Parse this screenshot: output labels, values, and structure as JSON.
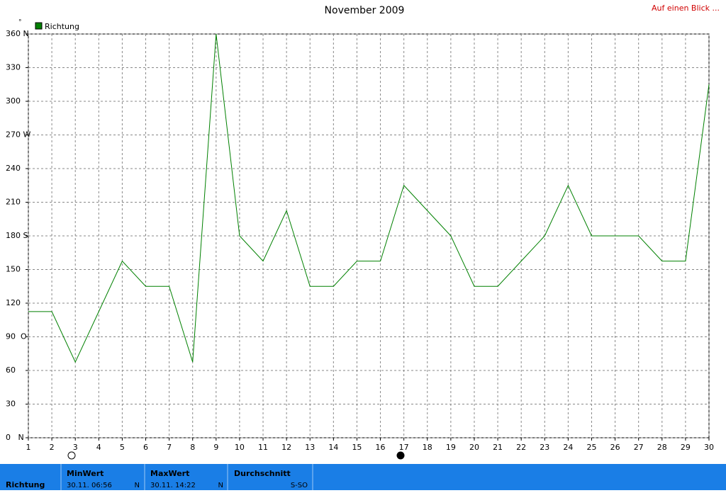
{
  "chart_data": {
    "type": "line",
    "title": "November 2009",
    "y_unit": "°",
    "x": [
      1,
      2,
      3,
      4,
      5,
      6,
      7,
      8,
      9,
      10,
      11,
      12,
      13,
      14,
      15,
      16,
      17,
      18,
      19,
      20,
      21,
      22,
      23,
      24,
      25,
      26,
      27,
      28,
      29,
      30
    ],
    "xlim": [
      1,
      30
    ],
    "xticks": [
      1,
      2,
      3,
      4,
      5,
      6,
      7,
      8,
      9,
      10,
      11,
      12,
      13,
      14,
      15,
      16,
      17,
      18,
      19,
      20,
      21,
      22,
      23,
      24,
      25,
      26,
      27,
      28,
      29,
      30
    ],
    "ylim": [
      0,
      360
    ],
    "yticks": [
      {
        "value": 0,
        "label": "0   N"
      },
      30,
      60,
      {
        "value": 90,
        "label": "90  O"
      },
      120,
      150,
      {
        "value": 180,
        "label": "180 S"
      },
      210,
      240,
      {
        "value": 270,
        "label": "270 W"
      },
      300,
      330,
      {
        "value": 360,
        "label": "360 N"
      }
    ],
    "grid": true,
    "series": [
      {
        "name": "Richtung",
        "color": "#008000",
        "values": [
          112.5,
          112.5,
          67.5,
          112.5,
          157.5,
          135,
          135,
          67.5,
          360,
          180,
          157.5,
          202.5,
          135,
          135,
          157.5,
          157.5,
          225,
          202.5,
          180,
          135,
          135,
          157.5,
          180,
          225,
          180,
          180,
          180,
          157.5,
          157.5,
          315
        ]
      }
    ]
  },
  "link": "Auf einen Blick ...",
  "summary": {
    "name": "Richtung",
    "min": {
      "label": "MinWert",
      "time": "30.11.  06:56",
      "value": "N"
    },
    "max": {
      "label": "MaxWert",
      "time": "30.11.  14:22",
      "value": "N"
    },
    "avg": {
      "label": "Durchschnitt",
      "value": "S-SO"
    }
  }
}
